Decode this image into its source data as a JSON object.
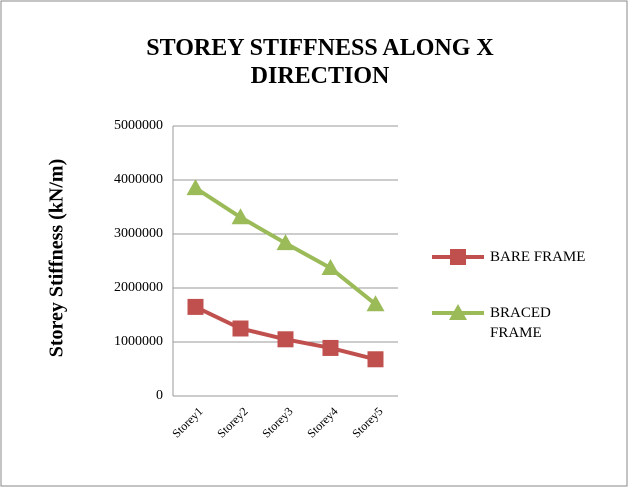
{
  "chart_data": {
    "type": "line",
    "title": "STOREY STIFFNESS ALONG X DIRECTION",
    "y_label": "Storey Stiffness (kN/m)",
    "categories": [
      "Storey1",
      "Storey2",
      "Storey3",
      "Storey4",
      "Storey5"
    ],
    "series": [
      {
        "name": "BARE FRAME",
        "color": "#c0504d",
        "marker": "square",
        "values": [
          1650000,
          1250000,
          1050000,
          890000,
          680000
        ]
      },
      {
        "name": "BRACED FRAME",
        "color": "#9bbb59",
        "marker": "triangle",
        "values": [
          3850000,
          3310000,
          2830000,
          2370000,
          1700000
        ]
      }
    ],
    "ylim": [
      0,
      5000000
    ],
    "yticks": [
      0,
      1000000,
      2000000,
      3000000,
      4000000,
      5000000
    ],
    "grid": true,
    "legend": "right"
  }
}
